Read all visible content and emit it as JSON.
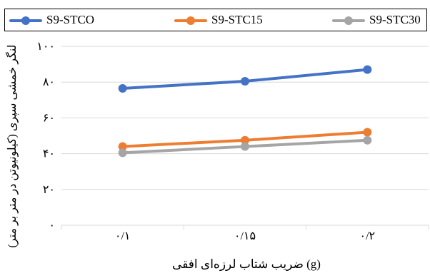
{
  "chart_data": {
    "type": "line",
    "categories": [
      "۰/۱",
      "۰/۱۵",
      "۰/۲"
    ],
    "series": [
      {
        "name": "S9-STCO",
        "color": "#4472C4",
        "values": [
          76.5,
          80.5,
          87
        ]
      },
      {
        "name": "S9-STC15",
        "color": "#ED7D31",
        "values": [
          44,
          47.5,
          52
        ]
      },
      {
        "name": "S9-STC30",
        "color": "#A5A5A5",
        "values": [
          40.5,
          44,
          47.5
        ]
      }
    ],
    "yticks": [
      {
        "value": 0,
        "label": "۰"
      },
      {
        "value": 20,
        "label": "۲۰"
      },
      {
        "value": 40,
        "label": "۴۰"
      },
      {
        "value": 60,
        "label": "۶۰"
      },
      {
        "value": 80,
        "label": "۸۰"
      },
      {
        "value": 100,
        "label": "۱۰۰"
      }
    ],
    "ylim": [
      0,
      100
    ],
    "xlabel": "ضریب شتاب لرزه‌ای افقی (g)",
    "ylabel": "لنگر خمشی سپری (کیلونیوتن در متر بر متر)",
    "grid": true,
    "legend_position": "top"
  }
}
